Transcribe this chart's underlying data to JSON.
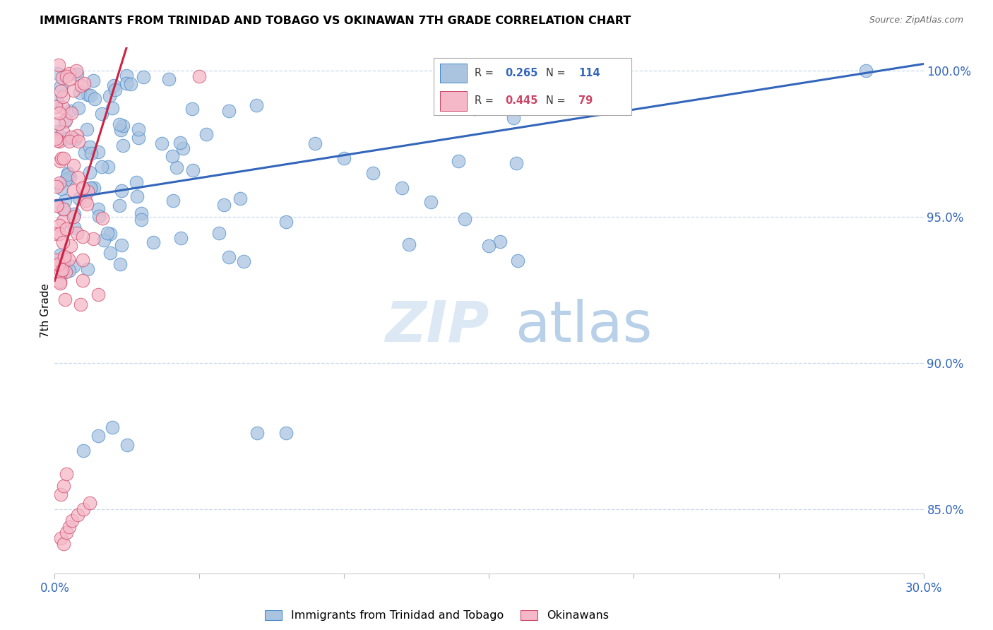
{
  "title": "IMMIGRANTS FROM TRINIDAD AND TOBAGO VS OKINAWAN 7TH GRADE CORRELATION CHART",
  "source": "Source: ZipAtlas.com",
  "ylabel": "7th Grade",
  "yticks": [
    85.0,
    90.0,
    95.0,
    100.0
  ],
  "xmin": 0.0,
  "xmax": 0.3,
  "ymin": 0.828,
  "ymax": 1.008,
  "blue_R": 0.265,
  "blue_N": 114,
  "pink_R": 0.445,
  "pink_N": 79,
  "legend_label_blue": "Immigrants from Trinidad and Tobago",
  "legend_label_pink": "Okinawans",
  "blue_color": "#aac4e0",
  "pink_color": "#f5b8c8",
  "blue_edge_color": "#4488cc",
  "pink_edge_color": "#cc4466",
  "blue_line_color": "#3366bb",
  "pink_line_color": "#cc2244",
  "grid_color": "#c8d8ec",
  "watermark_zip_color": "#dce8f4",
  "watermark_atlas_color": "#b8d0e8"
}
